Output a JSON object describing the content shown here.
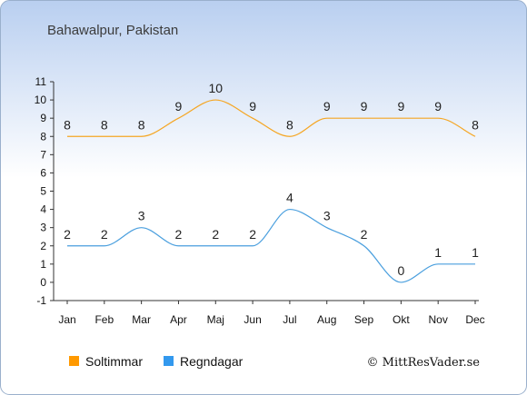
{
  "chart_data": {
    "type": "line",
    "title": "Bahawalpur, Pakistan",
    "categories": [
      "Jan",
      "Feb",
      "Mar",
      "Apr",
      "Maj",
      "Jun",
      "Jul",
      "Aug",
      "Sep",
      "Okt",
      "Nov",
      "Dec"
    ],
    "ylim": [
      -1,
      11
    ],
    "yticks": [
      -1,
      0,
      1,
      2,
      3,
      4,
      5,
      6,
      7,
      8,
      9,
      10,
      11
    ],
    "grid": false,
    "legend_position": "bottom-left",
    "series": [
      {
        "name": "Soltimmar",
        "color": "#f5a623",
        "values": [
          8,
          8,
          8,
          9,
          10,
          9,
          8,
          9,
          9,
          9,
          9,
          8
        ]
      },
      {
        "name": "Regndagar",
        "color": "#4a9fde",
        "values": [
          2,
          2,
          3,
          2,
          2,
          2,
          4,
          3,
          2,
          0,
          1,
          1
        ]
      }
    ]
  },
  "legend": {
    "legend_1": {
      "label": "Soltimmar",
      "color": "#ff9900"
    },
    "legend_2": {
      "label": "Regndagar",
      "color": "#3399ee"
    }
  },
  "credit": "© MittResVader.se"
}
